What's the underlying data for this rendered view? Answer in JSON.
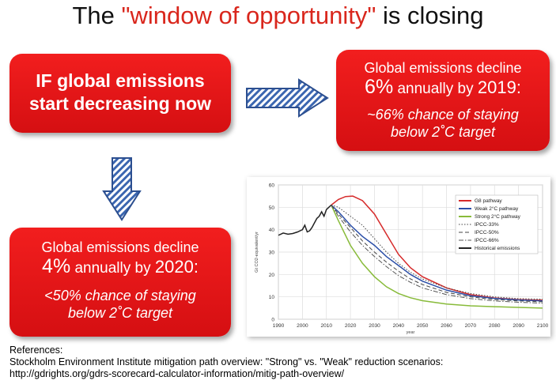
{
  "title": {
    "prefix": "The ",
    "highlight": "\"window of opportunity\"",
    "suffix": " is closing"
  },
  "box_now": {
    "line1": "IF global emissions",
    "line2": "start decreasing now"
  },
  "box_6pct": {
    "line1": "Global emissions decline",
    "pct": "6%",
    "mid": " annually by ",
    "year": "2019:",
    "chance1": "~66% chance of staying",
    "chance2": "below 2˚C target"
  },
  "box_4pct": {
    "line1": "Global emissions decline",
    "pct": "4%",
    "mid": " annually by ",
    "year": "2020:",
    "chance1": "<50% chance of staying",
    "chance2": "below 2˚C target"
  },
  "arrows": {
    "right": "arrow-right-icon",
    "down": "arrow-down-icon"
  },
  "chart_data": {
    "type": "line",
    "ylabel": "Gt CO2-equivalent/yr",
    "xlabel": "year",
    "xlim": [
      1990,
      2100
    ],
    "ylim": [
      0,
      60
    ],
    "xticks": [
      "1990",
      "2000",
      "2010",
      "2020",
      "2030",
      "2040",
      "2050",
      "2060",
      "2070",
      "2080",
      "2090",
      "2100"
    ],
    "yticks": [
      "0",
      "10",
      "20",
      "30",
      "40",
      "50",
      "60"
    ],
    "grid": true,
    "legend_position": "top-right",
    "series": [
      {
        "name": "G8 pathway",
        "color": "#d62a2a",
        "style": "solid",
        "x": [
          2012,
          2015,
          2018,
          2021,
          2025,
          2030,
          2035,
          2040,
          2045,
          2050,
          2060,
          2070,
          2080,
          2090,
          2100
        ],
        "y": [
          51,
          53.5,
          54.8,
          55,
          53,
          47,
          38,
          29,
          23,
          19,
          14,
          11,
          9.5,
          8.8,
          8.5
        ]
      },
      {
        "name": "Weak 2°C pathway",
        "color": "#2b4fa8",
        "style": "solid",
        "x": [
          2012,
          2015,
          2020,
          2025,
          2030,
          2035,
          2040,
          2045,
          2050,
          2060,
          2070,
          2080,
          2090,
          2100
        ],
        "y": [
          51,
          48,
          42,
          37,
          33,
          28,
          24,
          20,
          17,
          13,
          10.5,
          9.3,
          8.6,
          8.2
        ]
      },
      {
        "name": "Strong 2°C pathway",
        "color": "#88bb3a",
        "style": "solid",
        "x": [
          2012,
          2015,
          2020,
          2025,
          2030,
          2035,
          2040,
          2045,
          2050,
          2060,
          2070,
          2080,
          2090,
          2100
        ],
        "y": [
          51,
          44,
          33,
          25,
          19,
          14.5,
          11.5,
          9.6,
          8.3,
          6.8,
          6,
          5.6,
          5.3,
          5
        ]
      },
      {
        "name": "IPCC-33%",
        "color": "#444444",
        "style": "dotted",
        "x": [
          2012,
          2015,
          2020,
          2025,
          2030,
          2035,
          2040,
          2045,
          2050,
          2060,
          2070,
          2080,
          2090,
          2100
        ],
        "y": [
          51,
          50,
          46,
          42,
          36,
          30,
          25,
          21,
          18,
          14,
          11.5,
          10,
          9.2,
          9
        ]
      },
      {
        "name": "IPCC-50%",
        "color": "#444444",
        "style": "dashed",
        "x": [
          2012,
          2015,
          2020,
          2025,
          2030,
          2035,
          2040,
          2045,
          2050,
          2060,
          2070,
          2080,
          2090,
          2100
        ],
        "y": [
          51,
          47,
          41,
          35,
          30,
          25.5,
          21.5,
          18,
          15.5,
          12,
          10,
          8.8,
          8.2,
          7.8
        ]
      },
      {
        "name": "IPCC-66%",
        "color": "#555555",
        "style": "dashdot",
        "x": [
          2012,
          2015,
          2020,
          2025,
          2030,
          2035,
          2040,
          2045,
          2050,
          2060,
          2070,
          2080,
          2090,
          2100
        ],
        "y": [
          51,
          46,
          39,
          33,
          28,
          23.5,
          19.5,
          16.5,
          14,
          11,
          9.2,
          8.2,
          7.6,
          7.2
        ]
      },
      {
        "name": "Historical emissions",
        "color": "#222222",
        "style": "solid",
        "x": [
          1990,
          1992,
          1994,
          1996,
          1998,
          2000,
          2001,
          2002,
          2003,
          2004,
          2005,
          2006,
          2007,
          2008,
          2009,
          2010,
          2011,
          2012
        ],
        "y": [
          37.5,
          38.5,
          38,
          38.3,
          39,
          40,
          42,
          39,
          39.5,
          41,
          43,
          45,
          46,
          48,
          46,
          49,
          50,
          51
        ]
      }
    ]
  },
  "references": {
    "heading": "References:",
    "line1": "Stockholm Environment Institute mitigation path overview: \"Strong\" vs. \"Weak\" reduction scenarios:",
    "line2": "http://gdrights.org/gdrs-scorecard-calculator-information/mitig-path-overview/"
  }
}
